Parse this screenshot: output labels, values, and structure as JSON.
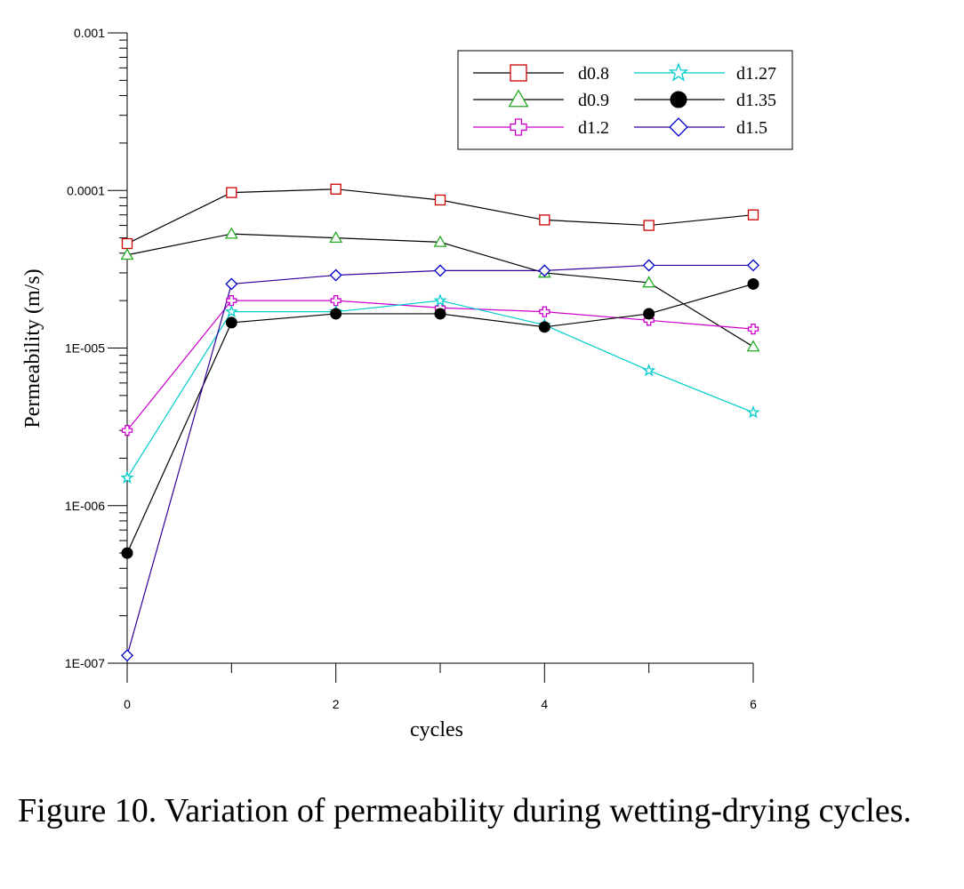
{
  "chart_data": {
    "type": "line",
    "xlabel": "cycles",
    "ylabel": "Permeability (m/s)",
    "x_scale": "linear",
    "y_scale": "log",
    "xlim": [
      0,
      6
    ],
    "ylim": [
      1e-07,
      0.001
    ],
    "x_ticks": [
      "0",
      "2",
      "4",
      "6"
    ],
    "y_ticks": [
      "1E-007",
      "1E-006",
      "1E-005",
      "0.0001",
      "0.001"
    ],
    "legend_position": "top-right",
    "grid": false,
    "x": [
      0,
      1,
      2,
      3,
      4,
      5,
      6
    ],
    "series": [
      {
        "name": "d0.8",
        "marker": "square",
        "marker_color": "#cc0000",
        "line_color": "#000000",
        "values": [
          4.6e-05,
          9.7e-05,
          0.000102,
          8.7e-05,
          6.5e-05,
          6e-05,
          7e-05
        ]
      },
      {
        "name": "d0.9",
        "marker": "triangle",
        "marker_color": "#22aa22",
        "line_color": "#000000",
        "values": [
          3.9e-05,
          5.3e-05,
          5e-05,
          4.7e-05,
          3e-05,
          2.6e-05,
          1.02e-05
        ]
      },
      {
        "name": "d1.2",
        "marker": "plus",
        "marker_color": "#cc00cc",
        "line_color": "#cc00cc",
        "values": [
          3e-06,
          2e-05,
          2e-05,
          1.8e-05,
          1.7e-05,
          1.5e-05,
          1.32e-05
        ]
      },
      {
        "name": "d1.27",
        "marker": "star",
        "marker_color": "#00cccc",
        "line_color": "#00cccc",
        "values": [
          1.5e-06,
          1.7e-05,
          1.7e-05,
          2e-05,
          1.4e-05,
          7.2e-06,
          3.9e-06
        ]
      },
      {
        "name": "d1.35",
        "marker": "filled-circle",
        "marker_color": "#000000",
        "line_color": "#000000",
        "values": [
          5e-07,
          1.45e-05,
          1.65e-05,
          1.65e-05,
          1.36e-05,
          1.65e-05,
          2.55e-05
        ]
      },
      {
        "name": "d1.5",
        "marker": "diamond",
        "marker_color": "#0000cc",
        "line_color": "#330099",
        "values": [
          1.12e-07,
          2.55e-05,
          2.9e-05,
          3.1e-05,
          3.1e-05,
          3.35e-05,
          3.35e-05
        ]
      }
    ]
  },
  "caption": "Figure 10. Variation of permeability during wetting-drying cycles."
}
